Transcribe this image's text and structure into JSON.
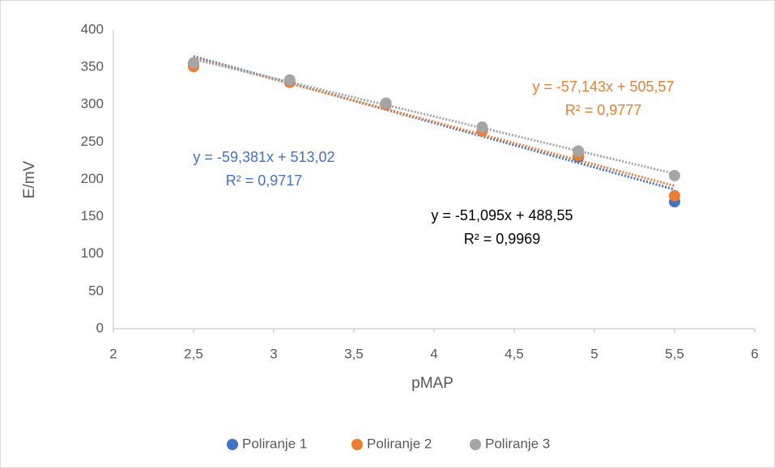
{
  "chart_data": {
    "type": "scatter",
    "x_label": "pMAP",
    "y_label": "E/mV",
    "x": [
      2.5,
      3.1,
      3.7,
      4.3,
      4.9,
      5.5
    ],
    "series": [
      {
        "name": "Poliranje 1",
        "color": "#4472c4",
        "values": [
          354,
          330,
          300,
          265,
          230,
          170
        ],
        "trendline": {
          "slope": -59.381,
          "intercept": 513.02,
          "equation": "y = -59,381x + 513,02",
          "r2": "R² = 0,9717",
          "label_color": "#4472c4"
        }
      },
      {
        "name": "Poliranje 2",
        "color": "#ed7d31",
        "values": [
          351,
          330,
          300,
          265,
          232,
          178
        ],
        "trendline": {
          "slope": -57.143,
          "intercept": 505.57,
          "equation": "y = -57,143x + 505,57",
          "r2": "R² = 0,9777",
          "label_color": "#ed7d31"
        }
      },
      {
        "name": "Poliranje 3",
        "color": "#a5a5a5",
        "values": [
          356,
          333,
          302,
          270,
          238,
          205
        ],
        "trendline": {
          "slope": -51.095,
          "intercept": 488.55,
          "equation": "y = -51,095x + 488,55",
          "r2": "R² = 0,9969",
          "label_color": "#000000"
        }
      }
    ],
    "xlim": [
      2,
      6
    ],
    "xticks": [
      2,
      {
        "value": 2.5,
        "label": "2,5"
      },
      3,
      {
        "value": 3.5,
        "label": "3,5"
      },
      4,
      {
        "value": 4.5,
        "label": "4,5"
      },
      5,
      {
        "value": 5.5,
        "label": "5,5"
      },
      6
    ],
    "ylim": [
      0,
      400
    ],
    "yticks": [
      0,
      50,
      100,
      150,
      200,
      250,
      300,
      350,
      400
    ],
    "legend": "bottom"
  }
}
